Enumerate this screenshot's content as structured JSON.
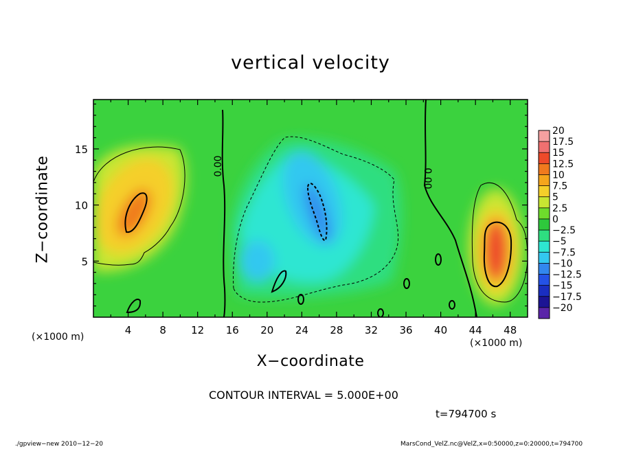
{
  "chart_data": {
    "type": "heatmap",
    "title": "vertical velocity",
    "xlabel": "X−coordinate",
    "ylabel": "Z−coordinate",
    "x_unit_left": "(×1000 m)",
    "x_unit_right": "(×1000 m)",
    "xlim": [
      0,
      50
    ],
    "ylim": [
      0,
      19.4
    ],
    "x_ticks": [
      4,
      8,
      12,
      16,
      20,
      24,
      28,
      32,
      36,
      40,
      44,
      48
    ],
    "y_ticks": [
      5,
      10,
      15
    ],
    "contour_interval": "CONTOUR INTERVAL = 5.000E+00",
    "time": "t=794700 s",
    "zero_contour_label": "0.00",
    "colorbar": {
      "levels": [
        "20",
        "17.5",
        "15",
        "12.5",
        "10",
        "7.5",
        "5",
        "2.5",
        "0",
        "−2.5",
        "−5",
        "−7.5",
        "−10",
        "−12.5",
        "−15",
        "−17.5",
        "−20"
      ],
      "colors": [
        "#f4a0a0",
        "#f07070",
        "#ee4a2a",
        "#f07a1e",
        "#f5a51c",
        "#f5cf2a",
        "#c8e632",
        "#6edc2c",
        "#2ec83c",
        "#2ede80",
        "#2ee6d2",
        "#33c8f0",
        "#3287ee",
        "#2452e6",
        "#1a2ec0",
        "#1c1494",
        "#5a24a8"
      ]
    },
    "footer_left": "./gpview−new  2010−12−20",
    "footer_right": "MarsCond_VelZ.nc@VelZ,x=0:50000,z=0:20000,t=794700"
  }
}
